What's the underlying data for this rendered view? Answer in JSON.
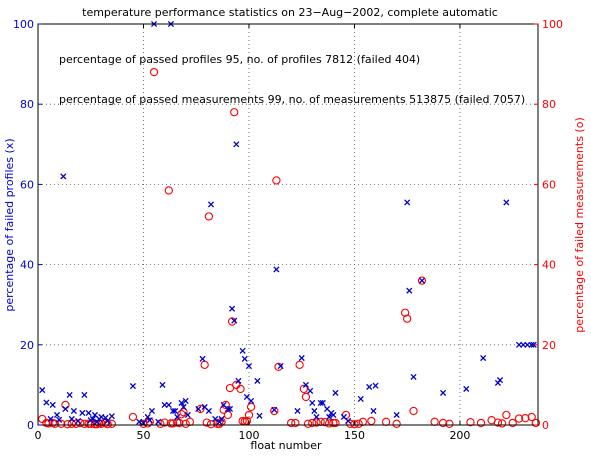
{
  "chart_data": {
    "type": "scatter",
    "title": "temperature performance statistics on 23−Aug−2002, complete automatic",
    "xlabel": "float number",
    "ylabel_left": "percentage of failed profiles (x)",
    "ylabel_right": "percentage of failed measurements (o)",
    "xlim": [
      0,
      237
    ],
    "ylim": [
      0,
      100
    ],
    "x_ticks": [
      0,
      50,
      100,
      150,
      200
    ],
    "y_ticks": [
      0,
      20,
      40,
      60,
      80,
      100
    ],
    "grid": true,
    "colors": {
      "left_axis": "#0000cc",
      "right_axis": "#ff0000",
      "marker_x": "#0000cc",
      "marker_o": "#ff0000"
    },
    "annotations": [
      "percentage of passed profiles 95, no. of profiles 7812 (failed 404)",
      "percentage of passed measurements 99, no. of measurements 513875 (failed 7057)"
    ],
    "series": [
      {
        "marker": "x",
        "axis": "left",
        "points": [
          [
            2,
            8.7
          ],
          [
            4,
            5.6
          ],
          [
            6,
            1.5
          ],
          [
            7,
            5
          ],
          [
            9,
            2.5
          ],
          [
            10,
            1.3
          ],
          [
            12,
            62
          ],
          [
            13,
            4
          ],
          [
            15,
            7.5
          ],
          [
            16,
            1.5
          ],
          [
            17,
            3.5
          ],
          [
            19,
            1
          ],
          [
            21,
            3
          ],
          [
            22,
            7.5
          ],
          [
            24,
            3
          ],
          [
            25,
            1.2
          ],
          [
            26,
            1.5
          ],
          [
            27,
            2.5
          ],
          [
            28,
            0.8
          ],
          [
            29,
            1.5
          ],
          [
            30,
            2
          ],
          [
            32,
            1.8
          ],
          [
            33,
            1
          ],
          [
            35,
            2.2
          ],
          [
            45,
            9.7
          ],
          [
            48,
            0.8
          ],
          [
            50,
            0.5
          ],
          [
            52,
            2
          ],
          [
            53,
            1.2
          ],
          [
            54,
            3.5
          ],
          [
            55,
            100
          ],
          [
            57,
            0.8
          ],
          [
            59,
            10
          ],
          [
            60,
            5
          ],
          [
            62,
            5
          ],
          [
            63,
            100
          ],
          [
            64,
            3.5
          ],
          [
            65,
            3.5
          ],
          [
            66,
            2
          ],
          [
            68,
            5.5
          ],
          [
            69,
            4.5
          ],
          [
            70,
            6
          ],
          [
            71,
            2.5
          ],
          [
            76,
            4
          ],
          [
            78,
            16.5
          ],
          [
            79,
            4.5
          ],
          [
            81,
            3.5
          ],
          [
            82,
            55
          ],
          [
            84,
            1.5
          ],
          [
            86,
            0.8
          ],
          [
            87,
            1.5
          ],
          [
            88,
            5
          ],
          [
            90,
            4
          ],
          [
            91,
            4
          ],
          [
            92,
            29
          ],
          [
            93,
            26
          ],
          [
            94,
            70
          ],
          [
            95,
            11
          ],
          [
            97,
            18.5
          ],
          [
            98,
            16.5
          ],
          [
            99,
            7
          ],
          [
            100,
            14.7
          ],
          [
            101,
            6
          ],
          [
            104,
            11
          ],
          [
            105,
            2.3
          ],
          [
            112,
            3.8
          ],
          [
            113,
            38.8
          ],
          [
            115,
            14.7
          ],
          [
            123,
            3.5
          ],
          [
            125,
            16.7
          ],
          [
            127,
            10
          ],
          [
            129,
            8.5
          ],
          [
            130,
            5.5
          ],
          [
            131,
            3.5
          ],
          [
            132,
            2
          ],
          [
            134,
            5.5
          ],
          [
            135,
            5.5
          ],
          [
            137,
            4
          ],
          [
            138,
            2
          ],
          [
            139,
            3
          ],
          [
            140,
            2.5
          ],
          [
            141,
            8
          ],
          [
            145,
            2
          ],
          [
            147,
            1
          ],
          [
            153,
            6.5
          ],
          [
            157,
            9.5
          ],
          [
            159,
            3.5
          ],
          [
            160,
            9.8
          ],
          [
            170,
            2.5
          ],
          [
            175,
            55.5
          ],
          [
            176,
            33.5
          ],
          [
            178,
            12
          ],
          [
            182,
            36
          ],
          [
            192,
            8
          ],
          [
            203,
            9
          ],
          [
            211,
            16.7
          ],
          [
            218,
            10.5
          ],
          [
            219,
            11.2
          ],
          [
            222,
            55.5
          ],
          [
            228,
            20
          ],
          [
            230,
            20
          ],
          [
            232,
            20
          ],
          [
            234,
            20
          ],
          [
            235,
            20
          ]
        ]
      },
      {
        "marker": "o",
        "axis": "right",
        "points": [
          [
            2,
            1.5
          ],
          [
            4,
            0.5
          ],
          [
            5,
            0.4
          ],
          [
            7,
            0.5
          ],
          [
            8,
            0.3
          ],
          [
            11,
            0.3
          ],
          [
            13,
            5
          ],
          [
            14,
            0.2
          ],
          [
            16,
            0.3
          ],
          [
            18,
            0.3
          ],
          [
            20,
            0.5
          ],
          [
            22,
            0.3
          ],
          [
            24,
            0.3
          ],
          [
            25,
            0.3
          ],
          [
            27,
            0.2
          ],
          [
            28,
            0.2
          ],
          [
            29,
            0.4
          ],
          [
            30,
            0.3
          ],
          [
            32,
            0.5
          ],
          [
            33,
            0.2
          ],
          [
            35,
            0.3
          ],
          [
            45,
            2
          ],
          [
            50,
            0.3
          ],
          [
            52,
            0.4
          ],
          [
            53,
            0.8
          ],
          [
            55,
            88
          ],
          [
            58,
            0.3
          ],
          [
            60,
            0.6
          ],
          [
            62,
            58.5
          ],
          [
            63,
            0.4
          ],
          [
            64,
            0.4
          ],
          [
            66,
            0.6
          ],
          [
            67,
            0.5
          ],
          [
            68,
            2.7
          ],
          [
            69,
            3.2
          ],
          [
            70,
            0.3
          ],
          [
            72,
            0.8
          ],
          [
            77,
            4
          ],
          [
            79,
            15
          ],
          [
            80,
            0.6
          ],
          [
            81,
            52
          ],
          [
            82,
            0.2
          ],
          [
            85,
            0.3
          ],
          [
            86,
            0.3
          ],
          [
            87,
            0.8
          ],
          [
            88,
            3.8
          ],
          [
            89,
            5
          ],
          [
            90,
            2.5
          ],
          [
            91,
            9.2
          ],
          [
            92,
            25.8
          ],
          [
            93,
            78
          ],
          [
            94,
            10
          ],
          [
            96,
            9
          ],
          [
            97,
            1
          ],
          [
            98,
            0.9
          ],
          [
            99,
            1
          ],
          [
            100,
            2.5
          ],
          [
            101,
            4.5
          ],
          [
            112,
            3.5
          ],
          [
            113,
            61
          ],
          [
            114,
            14.5
          ],
          [
            120,
            0.5
          ],
          [
            122,
            0.5
          ],
          [
            124,
            15
          ],
          [
            126,
            9
          ],
          [
            127,
            7
          ],
          [
            128,
            0.3
          ],
          [
            130,
            0.5
          ],
          [
            132,
            0.6
          ],
          [
            134,
            0.8
          ],
          [
            136,
            0.7
          ],
          [
            138,
            0.4
          ],
          [
            140,
            0.5
          ],
          [
            141,
            0.5
          ],
          [
            146,
            2.5
          ],
          [
            148,
            0.3
          ],
          [
            150,
            0.2
          ],
          [
            152,
            0.3
          ],
          [
            154,
            0.8
          ],
          [
            158,
            1
          ],
          [
            165,
            0.8
          ],
          [
            170,
            0.3
          ],
          [
            174,
            28
          ],
          [
            175,
            26.5
          ],
          [
            178,
            3.5
          ],
          [
            182,
            36
          ],
          [
            188,
            0.8
          ],
          [
            192,
            0.5
          ],
          [
            195,
            0.3
          ],
          [
            205,
            0.7
          ],
          [
            210,
            0.5
          ],
          [
            215,
            1.2
          ],
          [
            218,
            0.6
          ],
          [
            220,
            0.4
          ],
          [
            222,
            2.5
          ],
          [
            225,
            0.5
          ],
          [
            228,
            1.6
          ],
          [
            231,
            1.7
          ],
          [
            234,
            2
          ],
          [
            236,
            0.5
          ]
        ]
      }
    ]
  }
}
